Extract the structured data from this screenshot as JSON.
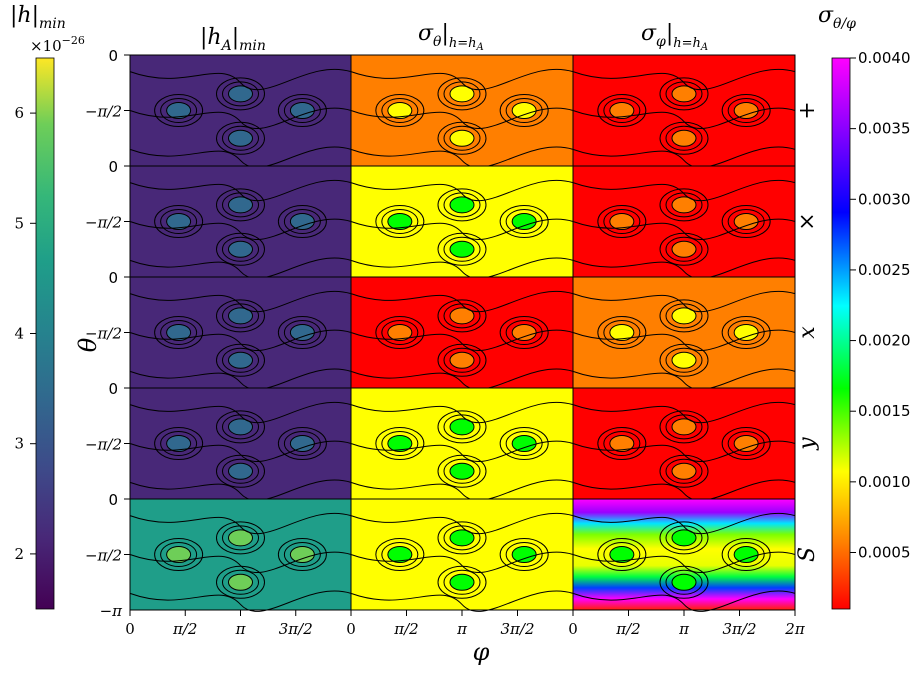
{
  "figure": {
    "left_colorbar_label": "|h|",
    "left_colorbar_label_sub": "min",
    "left_colorbar_exponent_base": "×10",
    "left_colorbar_exponent": "−26",
    "left_colorbar_ticks": [
      "2",
      "3",
      "4",
      "5",
      "6"
    ],
    "right_colorbar_label": "σ",
    "right_colorbar_label_sub": "θ/φ",
    "right_colorbar_ticks": [
      "0.0005",
      "0.0010",
      "0.0015",
      "0.0020",
      "0.0025",
      "0.0030",
      "0.0035",
      "0.0040"
    ],
    "col1_title": "|h",
    "col1_title_sub": "A",
    "col1_title_tail": "|",
    "col1_title_tail_sub": "min",
    "col2_title": "σ",
    "col2_title_sub": "θ",
    "col2_title_tail": "|",
    "col2_title_tail_sub": "h=h",
    "col2_title_tail_sub2": "A",
    "col3_title": "σ",
    "col3_title_sub": "φ",
    "col3_title_tail": "|",
    "col3_title_tail_sub": "h=h",
    "col3_title_tail_sub2": "A",
    "y_axis_label": "θ",
    "x_axis_label": "φ",
    "row_labels": [
      "+",
      "×",
      "x",
      "y",
      "S"
    ],
    "y_tick_zero": "0",
    "y_tick_half": "−π/2",
    "y_tick_bottom": "−π",
    "x_ticks": [
      "0",
      "π/2",
      "π",
      "3π/2",
      "2π"
    ]
  },
  "chart_data": {
    "type": "heatmap",
    "columns": [
      "|h_A|_min",
      "σ_θ|h=h_A",
      "σ_φ|h=h_A"
    ],
    "rows": [
      "+",
      "×",
      "x",
      "y",
      "S"
    ],
    "x_range": [
      0,
      6.2832
    ],
    "y_range": [
      -3.1416,
      0
    ],
    "xlabel": "φ",
    "ylabel": "θ",
    "left_colorbar": {
      "range": [
        1.5,
        6.5
      ],
      "scale_exponent": -26,
      "colormap": "viridis"
    },
    "right_colorbar": {
      "range": [
        0.0001,
        0.004
      ],
      "colormap": "gist_rainbow_r"
    },
    "panel_levels": [
      [
        0.12,
        0.1,
        0.12,
        0.08,
        0.65
      ],
      [
        0.55,
        0.68,
        0.05,
        0.68,
        0.78
      ],
      [
        0.08,
        0.06,
        0.52,
        0.05,
        0.95
      ]
    ]
  }
}
